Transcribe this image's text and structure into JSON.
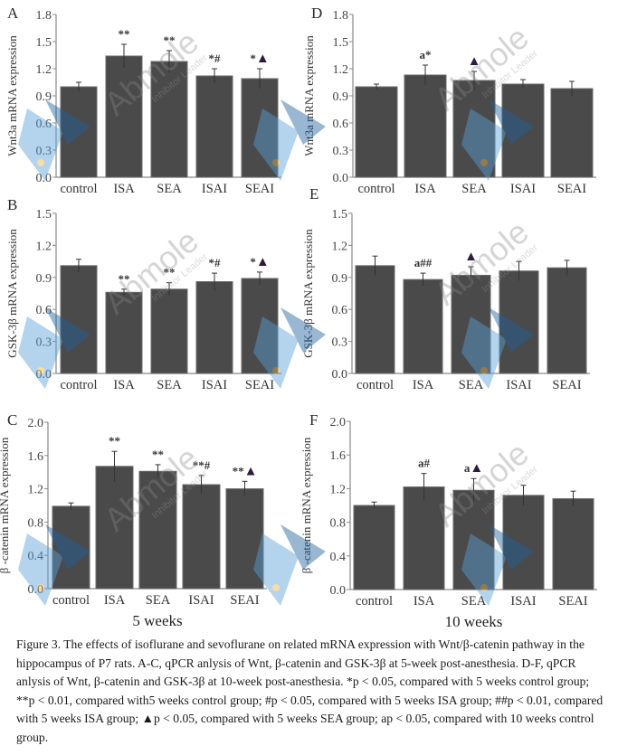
{
  "colors": {
    "bar_fill": "#4a4a4a",
    "bar_edge": "#6a6a6a",
    "axis": "#8a8a8a",
    "text": "#2a2a2a",
    "triangle": "#2b1b3d"
  },
  "group_labels": {
    "left": "5 weeks",
    "right": "10 weeks"
  },
  "chart_data": [
    {
      "panel": "A",
      "type": "bar",
      "title": "",
      "ylabel": "Wnt3a mRNA expression",
      "xlabel": "",
      "ylim": [
        0,
        1.8
      ],
      "yticks": [
        "0.0",
        "0.3",
        "0.6",
        "0.9",
        "1.2",
        "1.5",
        "1.8"
      ],
      "categories": [
        "control",
        "ISA",
        "SEA",
        "ISAI",
        "SEAI"
      ],
      "values": [
        1.0,
        1.34,
        1.28,
        1.12,
        1.09
      ],
      "errors": [
        0.05,
        0.13,
        0.12,
        0.08,
        0.11
      ],
      "annotations": [
        "",
        "**",
        "**",
        "*#",
        "*▲"
      ]
    },
    {
      "panel": "B",
      "type": "bar",
      "title": "",
      "ylabel": "GSK-3β mRNA expression",
      "xlabel": "",
      "ylim": [
        0,
        1.5
      ],
      "yticks": [
        "0.0",
        "0.3",
        "0.6",
        "0.9",
        "1.2",
        "1.5"
      ],
      "categories": [
        "control",
        "ISA",
        "SEA",
        "ISAI",
        "SEAI"
      ],
      "values": [
        1.01,
        0.76,
        0.79,
        0.86,
        0.89
      ],
      "errors": [
        0.06,
        0.03,
        0.06,
        0.08,
        0.06
      ],
      "annotations": [
        "",
        "**",
        "**",
        "*#",
        "*▲"
      ]
    },
    {
      "panel": "C",
      "type": "bar",
      "title": "",
      "ylabel": "β -catenin mRNA expression",
      "xlabel": "5 weeks",
      "ylim": [
        0,
        2.0
      ],
      "yticks": [
        "0.0",
        "0.4",
        "0.8",
        "1.2",
        "1.6",
        "2.0"
      ],
      "categories": [
        "control",
        "ISA",
        "SEA",
        "ISAI",
        "SEAI"
      ],
      "values": [
        0.99,
        1.47,
        1.41,
        1.25,
        1.2
      ],
      "errors": [
        0.04,
        0.18,
        0.08,
        0.11,
        0.09
      ],
      "annotations": [
        "",
        "**",
        "**",
        "**#",
        "**▲"
      ]
    },
    {
      "panel": "D",
      "type": "bar",
      "title": "",
      "ylabel": "Wnt3a mRNA expression",
      "xlabel": "",
      "ylim": [
        0,
        1.8
      ],
      "yticks": [
        "0.0",
        "0.3",
        "0.6",
        "0.9",
        "1.2",
        "1.5",
        "1.8"
      ],
      "categories": [
        "control",
        "ISA",
        "SEA",
        "ISAI",
        "SEAI"
      ],
      "values": [
        1.0,
        1.13,
        1.07,
        1.03,
        0.98
      ],
      "errors": [
        0.03,
        0.11,
        0.1,
        0.05,
        0.08
      ],
      "annotations": [
        "",
        "a*",
        "▲",
        "",
        ""
      ]
    },
    {
      "panel": "E",
      "type": "bar",
      "title": "",
      "ylabel": "GSK-3β mRNA expression",
      "xlabel": "",
      "ylim": [
        0,
        1.5
      ],
      "yticks": [
        "0.0",
        "0.3",
        "0.6",
        "0.9",
        "1.2",
        "1.5"
      ],
      "categories": [
        "control",
        "ISA",
        "SEA",
        "ISAI",
        "SEAI"
      ],
      "values": [
        1.01,
        0.88,
        0.92,
        0.96,
        0.99
      ],
      "errors": [
        0.09,
        0.06,
        0.08,
        0.09,
        0.07
      ],
      "annotations": [
        "",
        "a##",
        "▲",
        "",
        ""
      ]
    },
    {
      "panel": "F",
      "type": "bar",
      "title": "",
      "ylabel": "β -catenin mRNA expression",
      "xlabel": "10 weeks",
      "ylim": [
        0,
        2.0
      ],
      "yticks": [
        "0.0",
        "0.4",
        "0.8",
        "1.2",
        "1.6",
        "2.0"
      ],
      "categories": [
        "control",
        "ISA",
        "SEA",
        "ISAI",
        "SEAI"
      ],
      "values": [
        1.0,
        1.22,
        1.18,
        1.12,
        1.08
      ],
      "errors": [
        0.04,
        0.16,
        0.14,
        0.12,
        0.09
      ],
      "annotations": [
        "",
        "a#",
        "a▲",
        "",
        ""
      ]
    }
  ],
  "caption": "Figure 3. The effects of isoflurane and sevoflurane on related mRNA expression with Wnt/β-catenin pathway in the hippocampus of P7 rats. A-C, qPCR anlysis of Wnt, β-catenin and GSK-3β at 5-week post-anesthesia. D-F, qPCR anlysis of Wnt, β-catenin and GSK-3β at 10-week post-anesthesia. *p < 0.05, compared with 5 weeks control group; **p < 0.01, compared with5 weeks control group; #p < 0.05, compared with 5 weeks ISA group; ##p < 0.01, compared with 5 weeks ISA group; ▲p < 0.05, compared with 5 weeks SEA group; ap < 0.05, compared with 10 weeks control group.",
  "watermark": {
    "brand": "Abmole",
    "tagline": "Inhibitor Leader"
  }
}
